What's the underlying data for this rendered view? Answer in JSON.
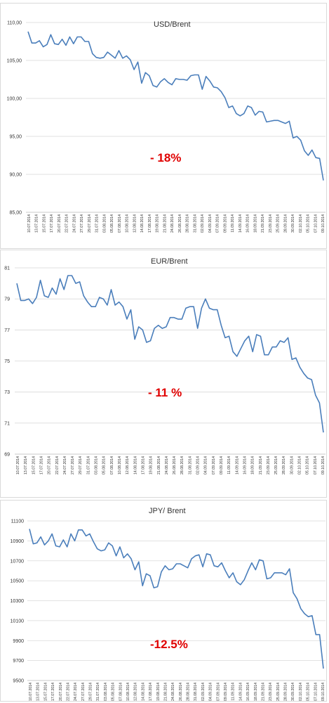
{
  "chart_data": [
    {
      "type": "line",
      "title": "USD/Brent",
      "annotation": "- 18%",
      "ylim": [
        85,
        110
      ],
      "ytick_values": [
        85,
        90,
        95,
        100,
        105,
        110
      ],
      "ytick_labels": [
        "85,00",
        "90,00",
        "95,00",
        "100,00",
        "105,00",
        "110,00"
      ],
      "grid": "horizontal",
      "color": "#4a7ebb",
      "xtick_labels": [
        "10.07.2014",
        "13.07.2014",
        "15.07.2014",
        "17.07.2014",
        "20.07.2014",
        "22.07.2014",
        "24.07.2014",
        "27.07.2014",
        "29.07.2014",
        "31.07.2014",
        "03.08.2014",
        "05.08.2014",
        "07.08.2014",
        "10.08.2014",
        "12.08.2014",
        "14.08.2014",
        "17.08.2014",
        "19.08.2014",
        "21.08.2014",
        "24.08.2014",
        "26.08.2014",
        "28.08.2014",
        "31.08.2014",
        "02.09.2014",
        "04.09.2014",
        "07.09.2014",
        "09.09.2014",
        "11.09.2014",
        "14.09.2014",
        "16.09.2014",
        "18.09.2014",
        "21.09.2014",
        "23.09.2014",
        "25.09.2014",
        "28.09.2014",
        "30.09.2014",
        "02.10.2014",
        "05.10.2014",
        "07.10.2014",
        "09.10.2014"
      ],
      "values": [
        108.8,
        107.3,
        107.3,
        107.6,
        106.8,
        107.1,
        108.4,
        107.2,
        107.1,
        107.8,
        107.0,
        108.1,
        107.2,
        108.1,
        108.1,
        107.5,
        107.5,
        105.9,
        105.4,
        105.3,
        105.4,
        106.1,
        105.7,
        105.3,
        106.3,
        105.3,
        105.6,
        105.1,
        103.8,
        104.8,
        102.0,
        103.4,
        103.0,
        101.7,
        101.5,
        102.2,
        102.6,
        102.1,
        101.8,
        102.6,
        102.5,
        102.5,
        102.4,
        103.0,
        103.1,
        103.1,
        101.2,
        102.9,
        102.3,
        101.5,
        101.4,
        100.9,
        100.1,
        98.8,
        99.0,
        98.0,
        97.7,
        98.0,
        99.0,
        98.8,
        97.8,
        98.3,
        98.2,
        96.9,
        97.0,
        97.1,
        97.1,
        96.9,
        96.7,
        97.0,
        94.8,
        95.0,
        94.5,
        93.1,
        92.5,
        93.2,
        92.2,
        92.1,
        89.2
      ]
    },
    {
      "type": "line",
      "title": "EUR/Brent",
      "annotation": "- 11 %",
      "ylim": [
        69,
        81
      ],
      "ytick_values": [
        69,
        71,
        73,
        75,
        77,
        79,
        81
      ],
      "ytick_labels": [
        "69",
        "71",
        "73",
        "75",
        "77",
        "79",
        "81"
      ],
      "grid": "horizontal",
      "color": "#4a7ebb",
      "xtick_labels": [
        "10.07.2014",
        "13.07.2014",
        "15.07.2014",
        "17.07.2014",
        "20.07.2014",
        "22.07.2014",
        "24.07.2014",
        "27.07.2014",
        "29.07.2014",
        "31.07.2014",
        "03.08.2014",
        "05.08.2014",
        "07.08.2014",
        "10.08.2014",
        "12.08.2014",
        "14.08.2014",
        "17.08.2014",
        "19.08.2014",
        "21.08.2014",
        "24.08.2014",
        "26.08.2014",
        "28.08.2014",
        "31.08.2014",
        "02.09.2014",
        "04.09.2014",
        "07.09.2014",
        "09.09.2014",
        "11.09.2014",
        "14.09.2014",
        "16.09.2014",
        "18.09.2014",
        "21.09.2014",
        "23.09.2014",
        "25.09.2014",
        "28.09.2014",
        "30.09.2014",
        "02.10.2014",
        "05.10.2014",
        "07.10.2014",
        "09.10.2014"
      ],
      "values": [
        80.0,
        78.9,
        78.9,
        79.0,
        78.7,
        79.1,
        80.2,
        79.2,
        79.1,
        79.7,
        79.3,
        80.3,
        79.6,
        80.5,
        80.5,
        80.0,
        80.1,
        79.2,
        78.8,
        78.5,
        78.5,
        79.1,
        79.0,
        78.6,
        79.6,
        78.6,
        78.8,
        78.5,
        77.7,
        78.3,
        76.4,
        77.2,
        77.0,
        76.2,
        76.3,
        77.1,
        77.3,
        77.1,
        77.2,
        77.8,
        77.8,
        77.7,
        77.7,
        78.4,
        78.5,
        78.5,
        77.1,
        78.4,
        79.0,
        78.4,
        78.3,
        78.3,
        77.3,
        76.5,
        76.6,
        75.6,
        75.3,
        75.8,
        76.3,
        76.6,
        75.6,
        76.7,
        76.6,
        75.4,
        75.4,
        75.9,
        75.9,
        76.3,
        76.2,
        76.5,
        75.1,
        75.2,
        74.6,
        74.2,
        73.9,
        73.8,
        72.8,
        72.3,
        70.4
      ]
    },
    {
      "type": "line",
      "title": "JPY/ Brent",
      "annotation": "-12.5%",
      "ylim": [
        9500,
        11100
      ],
      "ytick_values": [
        9500,
        9700,
        9900,
        10100,
        10300,
        10500,
        10700,
        10900,
        11100
      ],
      "ytick_labels": [
        "9500",
        "9700",
        "9900",
        "10100",
        "10300",
        "10500",
        "10700",
        "10900",
        "11100"
      ],
      "grid": "horizontal",
      "color": "#4a7ebb",
      "xtick_labels": [
        "10.07.2014",
        "13.07.2014",
        "15.07.2014",
        "17.07.2014",
        "20.07.2014",
        "22.07.2014",
        "24.07.2014",
        "27.07.2014",
        "29.07.2014",
        "31.07.2014",
        "03.08.2014",
        "05.08.2014",
        "07.08.2014",
        "10.08.2014",
        "12.08.2014",
        "14.08.2014",
        "17.08.2014",
        "19.08.2014",
        "21.08.2014",
        "24.08.2014",
        "26.08.2014",
        "28.08.2014",
        "31.08.2014",
        "02.09.2014",
        "04.09.2014",
        "07.09.2014",
        "09.09.2014",
        "11.09.2014",
        "14.09.2014",
        "16.09.2014",
        "18.09.2014",
        "21.09.2014",
        "23.09.2014",
        "25.09.2014",
        "28.09.2014",
        "30.09.2014",
        "02.10.2014",
        "05.10.2014",
        "07.10.2014",
        "09.10.2014"
      ],
      "values": [
        11020,
        10870,
        10880,
        10940,
        10860,
        10900,
        10970,
        10850,
        10840,
        10910,
        10840,
        10970,
        10900,
        11010,
        11010,
        10950,
        10970,
        10890,
        10820,
        10800,
        10810,
        10880,
        10850,
        10750,
        10840,
        10730,
        10770,
        10720,
        10610,
        10690,
        10450,
        10570,
        10550,
        10430,
        10440,
        10590,
        10650,
        10610,
        10620,
        10670,
        10670,
        10650,
        10630,
        10720,
        10750,
        10760,
        10640,
        10770,
        10760,
        10650,
        10640,
        10680,
        10600,
        10530,
        10580,
        10490,
        10460,
        10510,
        10600,
        10680,
        10610,
        10710,
        10700,
        10520,
        10530,
        10580,
        10580,
        10580,
        10560,
        10620,
        10380,
        10320,
        10220,
        10170,
        10140,
        10150,
        9960,
        9960,
        9620
      ]
    }
  ]
}
